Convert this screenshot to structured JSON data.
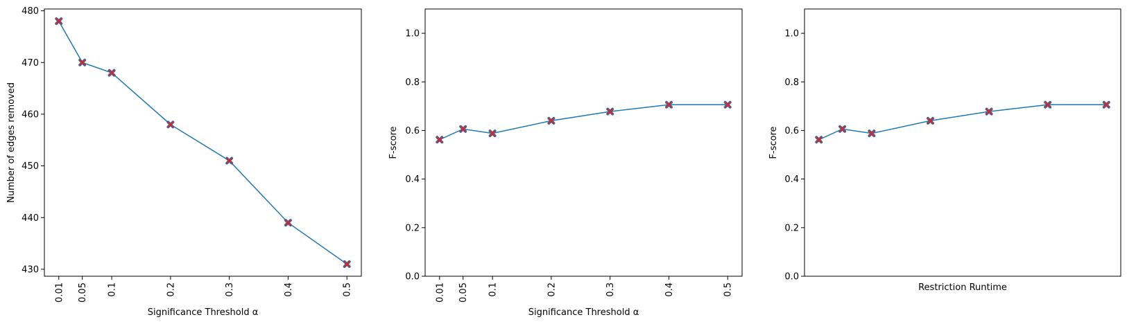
{
  "chart_data": [
    {
      "type": "line",
      "xlabel": "Significance Threshold α",
      "ylabel": "Number of edges removed",
      "x": [
        0.01,
        0.05,
        0.1,
        0.2,
        0.3,
        0.4,
        0.5
      ],
      "xtick_labels": [
        "0.01",
        "0.05",
        "0.1",
        "0.2",
        "0.3",
        "0.4",
        "0.5"
      ],
      "xlim": [
        -0.0145,
        0.5245
      ],
      "ylim": [
        428.65,
        480.35
      ],
      "yticks": [
        430,
        440,
        450,
        460,
        470,
        480
      ],
      "series": [
        {
          "values": [
            478,
            470,
            468,
            458,
            451,
            439,
            431
          ]
        }
      ],
      "line_color": "#1f77b4",
      "marker_color": "#d62728",
      "marker": "x"
    },
    {
      "type": "line",
      "xlabel": "Significance Threshold α",
      "ylabel": "F-score",
      "x": [
        0.01,
        0.05,
        0.1,
        0.2,
        0.3,
        0.4,
        0.5
      ],
      "xtick_labels": [
        "0.01",
        "0.05",
        "0.1",
        "0.2",
        "0.3",
        "0.4",
        "0.5"
      ],
      "xlim": [
        -0.0145,
        0.5245
      ],
      "ylim": [
        0,
        1.1
      ],
      "yticks": [
        0.0,
        0.2,
        0.4,
        0.6,
        0.8,
        1.0
      ],
      "series": [
        {
          "values": [
            0.562,
            0.606,
            0.588,
            0.64,
            0.678,
            0.706,
            0.706
          ]
        }
      ],
      "line_color": "#1f77b4",
      "marker_color": "#d62728",
      "marker": "x"
    },
    {
      "type": "line",
      "xlabel": "Restriction Runtime",
      "ylabel": "F-score",
      "x": [
        0.01,
        0.05,
        0.1,
        0.2,
        0.3,
        0.4,
        0.5
      ],
      "xtick_labels": [],
      "xlim": [
        -0.0145,
        0.5245
      ],
      "ylim": [
        0,
        1.1
      ],
      "yticks": [
        0.0,
        0.2,
        0.4,
        0.6,
        0.8,
        1.0
      ],
      "series": [
        {
          "values": [
            0.562,
            0.606,
            0.588,
            0.64,
            0.678,
            0.706,
            0.706
          ]
        }
      ],
      "line_color": "#1f77b4",
      "marker_color": "#d62728",
      "marker": "x"
    }
  ]
}
